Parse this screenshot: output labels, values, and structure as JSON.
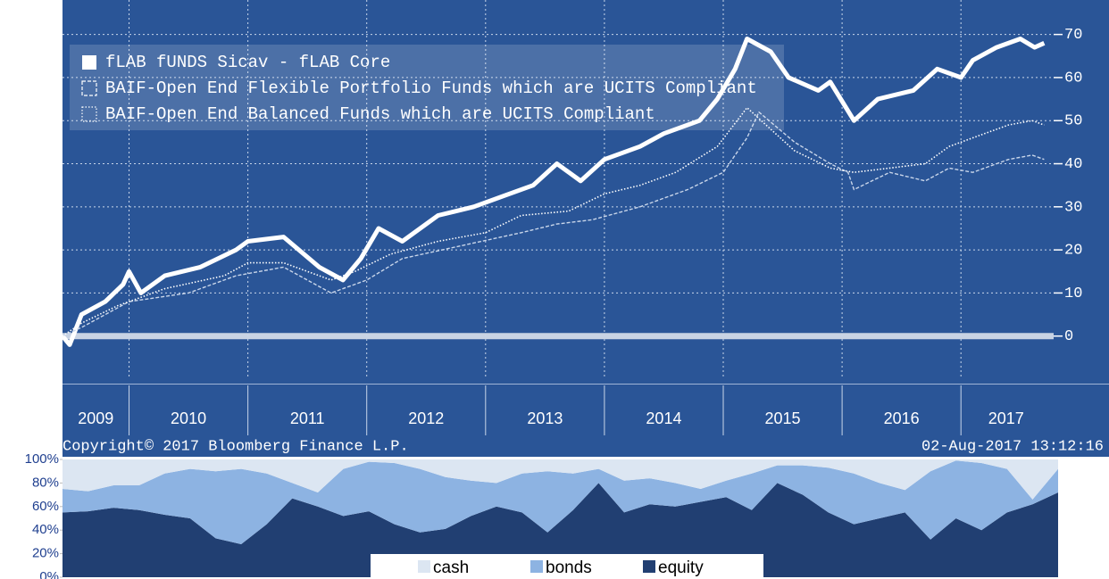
{
  "chart_data": [
    {
      "type": "line",
      "xlim": [
        2009.44,
        2017.78
      ],
      "ylim": [
        -10,
        78
      ],
      "xticks": [
        {
          "value": 2009.72,
          "label": "2009"
        },
        {
          "value": 2010.5,
          "label": "2010"
        },
        {
          "value": 2011.5,
          "label": "2011"
        },
        {
          "value": 2012.5,
          "label": "2012"
        },
        {
          "value": 2013.5,
          "label": "2013"
        },
        {
          "value": 2014.5,
          "label": "2014"
        },
        {
          "value": 2015.5,
          "label": "2015"
        },
        {
          "value": 2016.5,
          "label": "2016"
        },
        {
          "value": 2017.38,
          "label": "2017"
        }
      ],
      "xgrid": [
        2010,
        2011,
        2012,
        2013,
        2014,
        2015,
        2016,
        2017
      ],
      "yticks": [
        0,
        10,
        20,
        30,
        40,
        50,
        60,
        70
      ],
      "grid": true,
      "legend": "top-left",
      "annotations": [
        "Copyright© 2017 Bloomberg Finance L.P.",
        "02-Aug-2017 13:12:16"
      ],
      "series": [
        {
          "name": "fLAB fUNDS Sicav - fLAB Core",
          "color": "#ffffff",
          "line_style": "thick",
          "x": [
            2009.44,
            2009.5,
            2009.6,
            2009.8,
            2009.95,
            2010.0,
            2010.1,
            2010.3,
            2010.6,
            2010.9,
            2011.0,
            2011.3,
            2011.6,
            2011.8,
            2011.95,
            2012.1,
            2012.3,
            2012.6,
            2012.9,
            2013.2,
            2013.4,
            2013.6,
            2013.8,
            2014.0,
            2014.3,
            2014.5,
            2014.8,
            2014.95,
            2015.1,
            2015.2,
            2015.4,
            2015.55,
            2015.8,
            2015.9,
            2016.1,
            2016.3,
            2016.6,
            2016.8,
            2017.0,
            2017.1,
            2017.3,
            2017.5,
            2017.62,
            2017.7
          ],
          "values": [
            0,
            -2,
            5,
            8,
            12,
            15,
            10,
            14,
            16,
            20,
            22,
            23,
            16,
            13,
            18,
            25,
            22,
            28,
            30,
            33,
            35,
            40,
            36,
            41,
            44,
            47,
            50,
            55,
            62,
            69,
            66,
            60,
            57,
            59,
            50,
            55,
            57,
            62,
            60,
            64,
            67,
            69,
            67,
            68
          ]
        },
        {
          "name": "BAIF-Open End Flexible Portfolio Funds which are UCITS Compliant",
          "color": "#c9d6ea",
          "line_style": "dashed",
          "x": [
            2009.44,
            2009.6,
            2009.8,
            2010.0,
            2010.5,
            2010.9,
            2011.3,
            2011.7,
            2012.0,
            2012.3,
            2012.8,
            2013.3,
            2013.6,
            2013.9,
            2014.3,
            2014.7,
            2015.0,
            2015.2,
            2015.3,
            2015.6,
            2015.9,
            2016.05,
            2016.1,
            2016.4,
            2016.7,
            2016.9,
            2017.1,
            2017.4,
            2017.6,
            2017.7
          ],
          "values": [
            0,
            2,
            5,
            8,
            10,
            14,
            16,
            10,
            13,
            18,
            21,
            24,
            26,
            27,
            30,
            34,
            38,
            46,
            52,
            45,
            40,
            38,
            34,
            38,
            36,
            39,
            38,
            41,
            42,
            41
          ]
        },
        {
          "name": "BAIF-Open End Balanced Funds which are UCITS Compliant",
          "color": "#ffffff",
          "line_style": "dotted",
          "x": [
            2009.44,
            2009.6,
            2009.9,
            2010.3,
            2010.8,
            2011.0,
            2011.3,
            2011.7,
            2011.9,
            2012.2,
            2012.6,
            2013.0,
            2013.3,
            2013.7,
            2014.0,
            2014.3,
            2014.6,
            2014.95,
            2015.2,
            2015.4,
            2015.6,
            2015.9,
            2016.1,
            2016.4,
            2016.7,
            2016.9,
            2017.1,
            2017.4,
            2017.6,
            2017.7
          ],
          "values": [
            0,
            3,
            7,
            11,
            14,
            17,
            17,
            13,
            15,
            19,
            22,
            24,
            28,
            29,
            33,
            35,
            38,
            44,
            53,
            48,
            43,
            39,
            38,
            39,
            40,
            44,
            46,
            49,
            50,
            49
          ]
        }
      ]
    },
    {
      "type": "stacked-area",
      "ylim": [
        0,
        100
      ],
      "yticks": [
        {
          "value": 0,
          "label": "0%"
        },
        {
          "value": 20,
          "label": "20%"
        },
        {
          "value": 40,
          "label": "40%"
        },
        {
          "value": 60,
          "label": "60%"
        },
        {
          "value": 80,
          "label": "80%"
        },
        {
          "value": 100,
          "label": "100%"
        }
      ],
      "legend": "bottom",
      "series": [
        {
          "name": "equity",
          "color": "#213f72",
          "values": [
            55,
            56,
            59,
            57,
            53,
            50,
            33,
            28,
            45,
            67,
            60,
            52,
            56,
            45,
            38,
            41,
            52,
            60,
            55,
            38,
            57,
            80,
            55,
            62,
            60,
            64,
            68,
            57,
            80,
            70,
            55,
            45,
            50,
            55,
            32,
            50,
            40,
            55,
            62,
            72
          ]
        },
        {
          "name": "bonds",
          "color": "#8db3e2",
          "values": [
            20,
            17,
            19,
            21,
            35,
            42,
            57,
            64,
            43,
            13,
            12,
            40,
            42,
            52,
            54,
            44,
            30,
            20,
            33,
            52,
            31,
            12,
            27,
            22,
            20,
            11,
            14,
            31,
            15,
            25,
            38,
            43,
            30,
            19,
            58,
            49,
            57,
            37,
            4,
            20
          ]
        },
        {
          "name": "cash",
          "color": "#dce6f2",
          "values": [
            25,
            27,
            22,
            22,
            12,
            8,
            10,
            8,
            12,
            20,
            28,
            8,
            2,
            3,
            8,
            15,
            18,
            20,
            12,
            10,
            12,
            8,
            18,
            16,
            20,
            25,
            18,
            12,
            5,
            5,
            7,
            12,
            20,
            26,
            10,
            1,
            3,
            8,
            34,
            8
          ]
        }
      ]
    }
  ]
}
